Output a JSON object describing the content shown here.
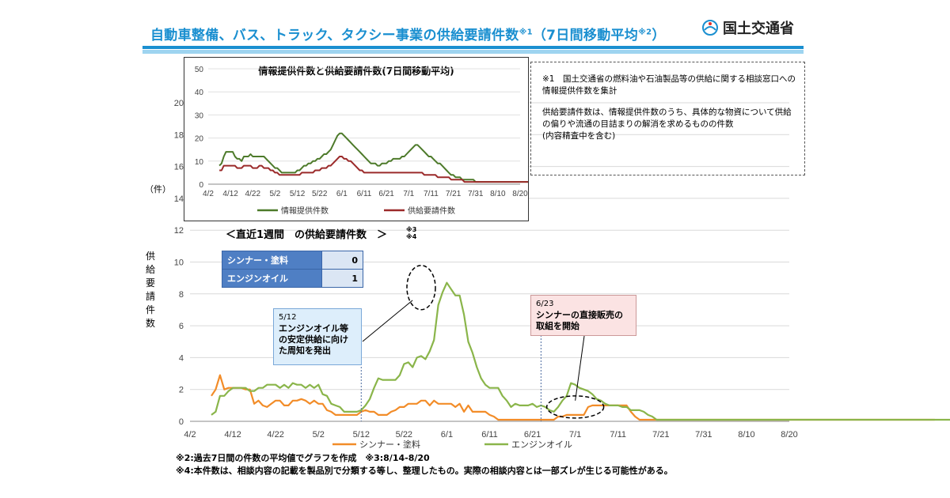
{
  "header": {
    "title": "自動車整備、バス、トラック、タクシー事業の供給要請件数",
    "title_note1": "※1",
    "title_paren_open": "（7日間移動平均",
    "title_note2": "※2",
    "title_paren_close": "）",
    "logo_text": "国土交通省"
  },
  "notes": {
    "note1": "※1　国土交通省の燃料油や石油製品等の供給に関する相談窓口への情報提供件数を集計",
    "note2": "供給要請件数は、情報提供件数のうち、具体的な物資について供給の偏りや流通の目詰まりの解消を求めるものの件数",
    "note3": "(内容精査中を含む)"
  },
  "recent": {
    "title": "＜直近1週間　の供給要請件数　＞",
    "title_note_a": "※3",
    "title_note_b": "※4",
    "rows": [
      {
        "label": "シンナー・塗料",
        "value": "0"
      },
      {
        "label": "エンジンオイル",
        "value": "1"
      }
    ]
  },
  "callouts": {
    "c1_date": "5/12",
    "c1_text": "エンジンオイル等の安定供給に向けた周知を発出",
    "c2_date": "6/23",
    "c2_text": "シンナーの直接販売の取組を開始"
  },
  "axis": {
    "unit": "（件）",
    "ytitle": "供給要請件数"
  },
  "footer": {
    "line1": "※2:過去7日間の件数の平均値でグラフを作成　※3:8/14-8/20",
    "line2": "※4:本件数は、相談内容の記載を製品別で分類する等し、整理したもの。実際の相談内容とは一部ズレが生じる可能性がある。"
  },
  "chart_data": [
    {
      "type": "line",
      "title": "",
      "xlabel": "",
      "ylabel": "供給要請件数",
      "x_start": "4/7",
      "x_ticks": [
        "4/2",
        "4/12",
        "4/22",
        "5/2",
        "5/12",
        "5/22",
        "6/1",
        "6/11",
        "6/21",
        "7/1",
        "7/11",
        "7/21",
        "7/31",
        "8/10",
        "8/20"
      ],
      "y_ticks": [
        0,
        2,
        4,
        6,
        8,
        10,
        12,
        14,
        16,
        18,
        20
      ],
      "ylim": [
        0,
        20
      ],
      "legend_position": "bottom",
      "grid": true,
      "colors": {
        "thinner": "#f28c28",
        "oil": "#8ab54a"
      },
      "series": [
        {
          "name": "シンナー・塗料",
          "values": [
            1.6,
            2.0,
            2.9,
            2.0,
            2.1,
            2.1,
            2.1,
            2.1,
            2.0,
            2.0,
            1.1,
            1.3,
            1.0,
            0.9,
            1.1,
            1.3,
            1.3,
            1.0,
            1.0,
            1.3,
            1.3,
            1.4,
            1.3,
            1.1,
            1.3,
            1.1,
            1.1,
            0.7,
            0.6,
            0.4,
            0.4,
            0.4,
            0.4,
            0.4,
            0.4,
            0.6,
            0.7,
            0.6,
            0.6,
            0.4,
            0.4,
            0.4,
            0.6,
            0.7,
            0.9,
            0.9,
            1.1,
            1.1,
            1.1,
            1.3,
            1.3,
            1.0,
            1.3,
            1.1,
            1.1,
            1.1,
            1.1,
            0.9,
            1.1,
            0.6,
            1.0,
            0.6,
            0.6,
            0.6,
            0.6,
            0.4,
            0.3,
            0.1,
            0.1,
            0.1,
            0.1,
            0.1,
            0.1,
            0.1,
            0.1,
            0.1,
            0.1,
            0.1,
            0.1,
            0.1,
            0.1,
            0.3,
            0.3,
            0.4,
            0.4,
            0.4,
            0.4,
            0.4,
            0.9,
            1.0,
            1.0,
            1.0,
            1.0,
            1.0,
            1.0,
            1.0,
            1.0,
            1.0,
            0.6,
            0.3,
            0.1,
            0.1,
            0.1,
            0.1,
            0.1,
            0.1,
            0.1,
            0.1,
            0.1,
            0.1,
            0.1,
            0.1,
            0.1,
            0.1,
            0.1,
            0.1,
            0.1,
            0.1,
            0.1,
            0.1,
            0.1,
            0.1,
            0.1,
            0.1,
            0.1,
            0.1,
            0.1,
            0.1,
            0.1,
            0.1,
            0.1,
            0.1,
            0.1,
            0.1,
            0.1,
            0.1,
            0.1,
            0.1,
            0.1,
            0.1,
            0.1,
            0.1,
            0.1,
            0.1,
            0.1,
            0.1,
            0.1,
            0.1,
            0.1,
            0.1,
            0.1,
            0.1,
            0.1,
            0.1,
            0.1,
            0.1,
            0.1,
            0.1,
            0.1,
            0.1,
            0.1,
            0.1,
            0.1,
            0.1,
            0.1,
            0.1,
            0.1,
            0.1,
            0.1,
            0.1
          ]
        },
        {
          "name": "エンジンオイル",
          "values": [
            0.4,
            0.6,
            1.6,
            1.6,
            1.9,
            2.1,
            2.1,
            2.1,
            2.1,
            1.9,
            1.9,
            2.1,
            2.1,
            2.3,
            2.3,
            2.3,
            2.1,
            2.3,
            2.1,
            2.4,
            2.3,
            2.3,
            2.1,
            2.3,
            2.1,
            2.3,
            1.7,
            1.6,
            1.1,
            1.0,
            0.9,
            0.6,
            0.6,
            0.6,
            0.6,
            0.7,
            1.0,
            1.4,
            2.1,
            2.7,
            2.6,
            2.6,
            2.6,
            2.6,
            2.9,
            3.6,
            3.7,
            3.4,
            4.0,
            4.1,
            3.9,
            4.4,
            5.1,
            7.3,
            8.1,
            8.7,
            8.3,
            7.9,
            7.9,
            6.7,
            5.0,
            4.3,
            3.4,
            2.7,
            2.3,
            2.1,
            2.1,
            2.1,
            1.6,
            1.3,
            0.9,
            1.1,
            1.0,
            1.0,
            1.0,
            1.1,
            0.9,
            1.0,
            0.9,
            0.7,
            0.6,
            0.9,
            1.3,
            1.6,
            2.4,
            2.3,
            2.1,
            2.0,
            1.9,
            1.7,
            1.4,
            1.3,
            1.1,
            1.0,
            1.0,
            1.0,
            0.9,
            0.9,
            0.7,
            0.7,
            0.7,
            0.6,
            0.4,
            0.3,
            0.1,
            0.1,
            0.1,
            0.1,
            0.1,
            0.1,
            0.1,
            0.1,
            0.1,
            0.1,
            0.1,
            0.1,
            0.1,
            0.1,
            0.1,
            0.1,
            0.1,
            0.1,
            0.1,
            0.1,
            0.1,
            0.1,
            0.1,
            0.1,
            0.1,
            0.1,
            0.1,
            0.1,
            0.1,
            0.1,
            0.1,
            0.1,
            0.1,
            0.1,
            0.1,
            0.1,
            0.1,
            0.1,
            0.1,
            0.1,
            0.1,
            0.1,
            0.1,
            0.1,
            0.1,
            0.1,
            0.1,
            0.1,
            0.1,
            0.1,
            0.1,
            0.1,
            0.1,
            0.1,
            0.1,
            0.1,
            0.1,
            0.1,
            0.1,
            0.1,
            0.1,
            0.1,
            0.1,
            0.1,
            0.1,
            0.1,
            0.1,
            0.1,
            0.1,
            0.1
          ]
        }
      ]
    },
    {
      "type": "line",
      "title": "情報提供件数と供給要請件数(7日間移動平均)",
      "xlabel": "",
      "ylabel": "",
      "x_start": "4/7",
      "x_ticks": [
        "4/2",
        "4/12",
        "4/22",
        "5/2",
        "5/12",
        "5/22",
        "6/1",
        "6/11",
        "6/21",
        "7/1",
        "7/11",
        "7/21",
        "7/31",
        "8/10",
        "8/20"
      ],
      "y_ticks": [
        0,
        10,
        20,
        30,
        40,
        50
      ],
      "ylim": [
        0,
        50
      ],
      "legend_position": "bottom",
      "grid": true,
      "colors": {
        "info": "#4d7a2a",
        "req": "#9b2a2a"
      },
      "series": [
        {
          "name": "情報提供件数",
          "values": [
            8,
            9,
            12,
            14,
            14,
            14,
            14,
            12,
            11,
            11,
            10,
            12,
            12,
            12,
            13,
            12,
            12,
            12,
            12,
            12,
            12,
            11,
            10,
            9,
            8,
            7,
            7,
            6,
            5,
            5,
            5,
            5,
            5,
            5,
            5,
            6,
            6,
            7,
            8,
            8,
            9,
            9,
            10,
            10,
            11,
            11,
            12,
            13,
            13,
            14,
            15,
            17,
            19,
            21,
            22,
            22,
            21,
            20,
            19,
            18,
            17,
            16,
            15,
            14,
            13,
            12,
            11,
            10,
            9,
            9,
            9,
            8,
            8,
            9,
            9,
            9,
            10,
            10,
            11,
            11,
            11,
            11,
            12,
            12,
            13,
            14,
            15,
            16,
            17,
            17,
            16,
            15,
            14,
            13,
            12,
            12,
            11,
            10,
            9,
            9,
            8,
            7,
            6,
            5,
            4,
            4,
            3,
            3,
            3,
            2,
            2,
            2,
            2,
            2,
            2,
            1,
            1,
            1,
            1,
            1,
            1,
            1,
            1,
            1,
            1,
            1,
            1,
            1,
            1,
            1,
            1,
            1,
            1,
            1,
            1,
            1,
            1,
            1,
            1,
            1,
            1,
            1,
            1,
            1,
            1,
            1,
            1,
            1,
            1,
            1,
            1,
            1,
            1,
            1,
            1,
            1,
            1,
            1,
            1,
            1,
            1,
            1,
            1,
            1,
            1,
            1,
            1,
            1,
            1,
            1,
            1,
            1,
            1,
            1,
            1,
            1
          ]
        },
        {
          "name": "供給要請件数",
          "values": [
            6,
            6,
            8,
            8,
            8,
            8,
            8,
            8,
            7,
            7,
            7,
            8,
            8,
            8,
            8,
            7,
            7,
            7,
            8,
            8,
            7,
            7,
            7,
            6,
            6,
            5,
            5,
            4,
            4,
            4,
            4,
            4,
            4,
            4,
            4,
            4,
            4,
            5,
            5,
            5,
            5,
            5,
            5,
            6,
            6,
            6,
            7,
            7,
            7,
            8,
            8,
            9,
            10,
            11,
            12,
            12,
            11,
            11,
            10,
            10,
            9,
            8,
            7,
            6,
            6,
            5,
            5,
            5,
            5,
            5,
            5,
            5,
            5,
            5,
            5,
            5,
            5,
            5,
            5,
            5,
            5,
            5,
            5,
            5,
            5,
            5,
            5,
            5,
            5,
            5,
            5,
            5,
            4,
            4,
            4,
            4,
            4,
            4,
            3,
            3,
            3,
            3,
            3,
            3,
            2,
            2,
            2,
            2,
            2,
            2,
            1,
            1,
            1,
            1,
            1,
            1,
            1,
            1,
            1,
            1,
            1,
            1,
            1,
            1,
            1,
            1,
            1,
            1,
            1,
            1,
            1,
            1,
            1,
            1,
            1,
            1,
            1,
            1,
            1,
            1,
            1,
            1,
            1,
            1,
            1,
            1,
            1,
            1,
            1,
            1,
            1,
            1,
            1,
            1,
            1,
            1,
            1,
            1,
            1,
            1,
            1,
            1,
            1,
            1,
            1,
            1,
            1,
            1,
            1,
            1,
            1,
            1,
            1,
            1,
            1,
            1
          ]
        }
      ]
    }
  ]
}
